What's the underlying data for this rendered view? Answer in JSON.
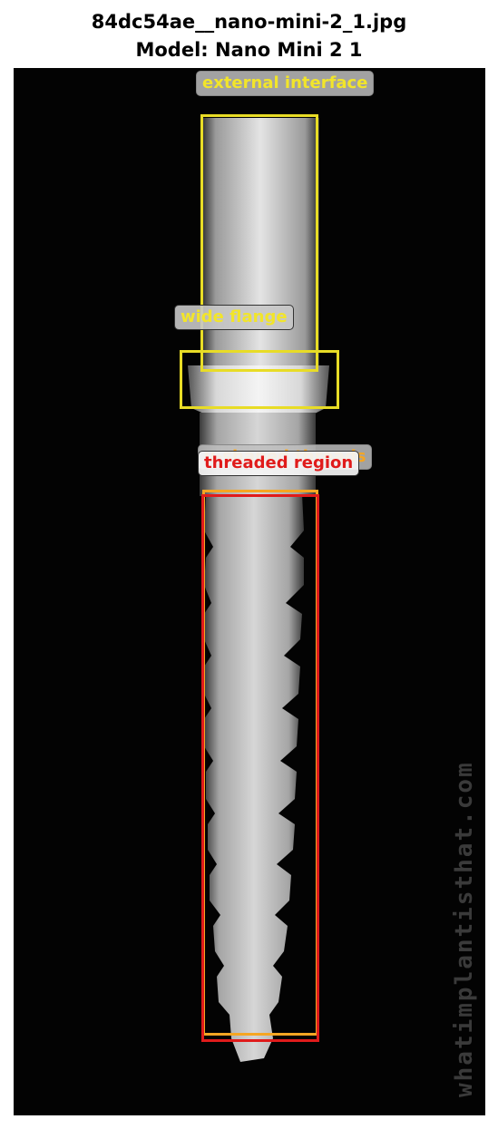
{
  "header": {
    "filename": "84dc54ae__nano-mini-2_1.jpg",
    "model": "Model: Nano Mini 2 1"
  },
  "annotations": [
    {
      "label": "external interface",
      "color": "#f2e52a"
    },
    {
      "label": "wide flange",
      "color": "#f2e52a"
    },
    {
      "label": "u-shaped threads",
      "color": "#f5a623"
    },
    {
      "label": "threaded region",
      "color": "#e01b1b"
    }
  ],
  "watermark": "whatimplantisthat.com"
}
